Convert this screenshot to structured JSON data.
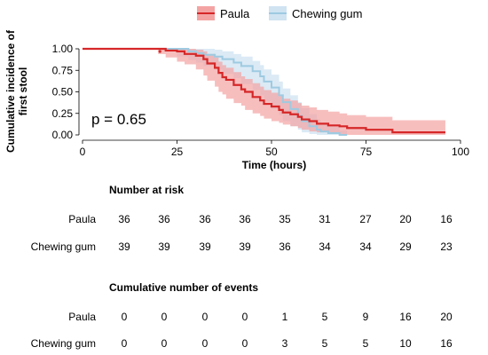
{
  "chart_data": {
    "type": "line",
    "subtype": "cumulative-incidence-step",
    "ylabel": "Cumulative incidence of first stool",
    "ylabel_lines": [
      "Cumulative incidence of",
      "first stool"
    ],
    "xlabel": "Time (hours)",
    "xlim": [
      0,
      100
    ],
    "ylim": [
      0,
      1
    ],
    "x_ticks": [
      0,
      25,
      50,
      75,
      100
    ],
    "y_ticks": [
      "0.00",
      "0.25",
      "0.50",
      "0.75",
      "1.00"
    ],
    "annotation": "p = 0.65",
    "legend_position": "top",
    "series": [
      {
        "name": "Paula",
        "color": "#d62728",
        "ci_color": "#f4a3a3",
        "x": [
          0,
          20,
          22,
          25,
          27,
          30,
          32,
          33,
          35,
          36,
          37,
          38,
          40,
          42,
          43,
          45,
          47,
          48,
          50,
          52,
          53,
          55,
          57,
          58,
          60,
          62,
          65,
          68,
          70,
          75,
          82,
          96
        ],
        "y": [
          1.0,
          1.0,
          0.98,
          0.97,
          0.94,
          0.92,
          0.88,
          0.83,
          0.78,
          0.72,
          0.67,
          0.64,
          0.58,
          0.53,
          0.5,
          0.44,
          0.4,
          0.36,
          0.33,
          0.29,
          0.26,
          0.24,
          0.21,
          0.18,
          0.16,
          0.13,
          0.11,
          0.1,
          0.08,
          0.06,
          0.03,
          0.03
        ],
        "ci_upper": [
          1.0,
          1.0,
          1.0,
          1.0,
          1.0,
          0.99,
          0.97,
          0.94,
          0.9,
          0.85,
          0.81,
          0.78,
          0.73,
          0.68,
          0.65,
          0.6,
          0.56,
          0.52,
          0.49,
          0.45,
          0.42,
          0.4,
          0.37,
          0.34,
          0.32,
          0.29,
          0.27,
          0.25,
          0.23,
          0.21,
          0.17,
          0.17
        ],
        "ci_lower": [
          1.0,
          1.0,
          0.94,
          0.9,
          0.85,
          0.82,
          0.76,
          0.69,
          0.63,
          0.56,
          0.5,
          0.47,
          0.42,
          0.37,
          0.34,
          0.29,
          0.25,
          0.22,
          0.19,
          0.16,
          0.14,
          0.12,
          0.1,
          0.08,
          0.06,
          0.04,
          0.03,
          0.02,
          0.01,
          0.0,
          0.0,
          0.0
        ]
      },
      {
        "name": "Chewing gum",
        "color": "#9ecae1",
        "ci_color": "#cfe3f1",
        "x": [
          0,
          22,
          25,
          28,
          30,
          32,
          35,
          37,
          40,
          42,
          45,
          47,
          48,
          50,
          52,
          53,
          55,
          57,
          58,
          60,
          62,
          63,
          65,
          68,
          70
        ],
        "y": [
          1.0,
          1.0,
          1.0,
          0.97,
          0.95,
          0.93,
          0.91,
          0.88,
          0.84,
          0.8,
          0.74,
          0.68,
          0.62,
          0.55,
          0.46,
          0.38,
          0.3,
          0.22,
          0.16,
          0.1,
          0.06,
          0.04,
          0.02,
          0.0,
          0.0
        ],
        "ci_upper": [
          1.0,
          1.0,
          1.0,
          1.0,
          1.0,
          1.0,
          0.99,
          0.97,
          0.94,
          0.91,
          0.86,
          0.81,
          0.76,
          0.7,
          0.62,
          0.54,
          0.46,
          0.38,
          0.31,
          0.24,
          0.18,
          0.14,
          0.1,
          0.05,
          0.04
        ],
        "ci_lower": [
          1.0,
          1.0,
          1.0,
          0.91,
          0.87,
          0.84,
          0.8,
          0.76,
          0.71,
          0.66,
          0.59,
          0.52,
          0.46,
          0.39,
          0.3,
          0.23,
          0.16,
          0.1,
          0.06,
          0.03,
          0.01,
          0.0,
          0.0,
          0.0,
          0.0
        ]
      }
    ]
  },
  "risk_table": {
    "title": "Number at risk",
    "rows": [
      {
        "label": "Paula",
        "values": [
          "36",
          "36",
          "36",
          "36",
          "35",
          "31",
          "27",
          "20",
          "16"
        ]
      },
      {
        "label": "Chewing gum",
        "values": [
          "39",
          "39",
          "39",
          "39",
          "36",
          "34",
          "34",
          "29",
          "23"
        ]
      }
    ]
  },
  "events_table": {
    "title": "Cumulative number of events",
    "rows": [
      {
        "label": "Paula",
        "values": [
          "0",
          "0",
          "0",
          "0",
          "1",
          "5",
          "9",
          "16",
          "20"
        ]
      },
      {
        "label": "Chewing gum",
        "values": [
          "0",
          "0",
          "0",
          "0",
          "3",
          "5",
          "5",
          "10",
          "16"
        ]
      }
    ]
  }
}
